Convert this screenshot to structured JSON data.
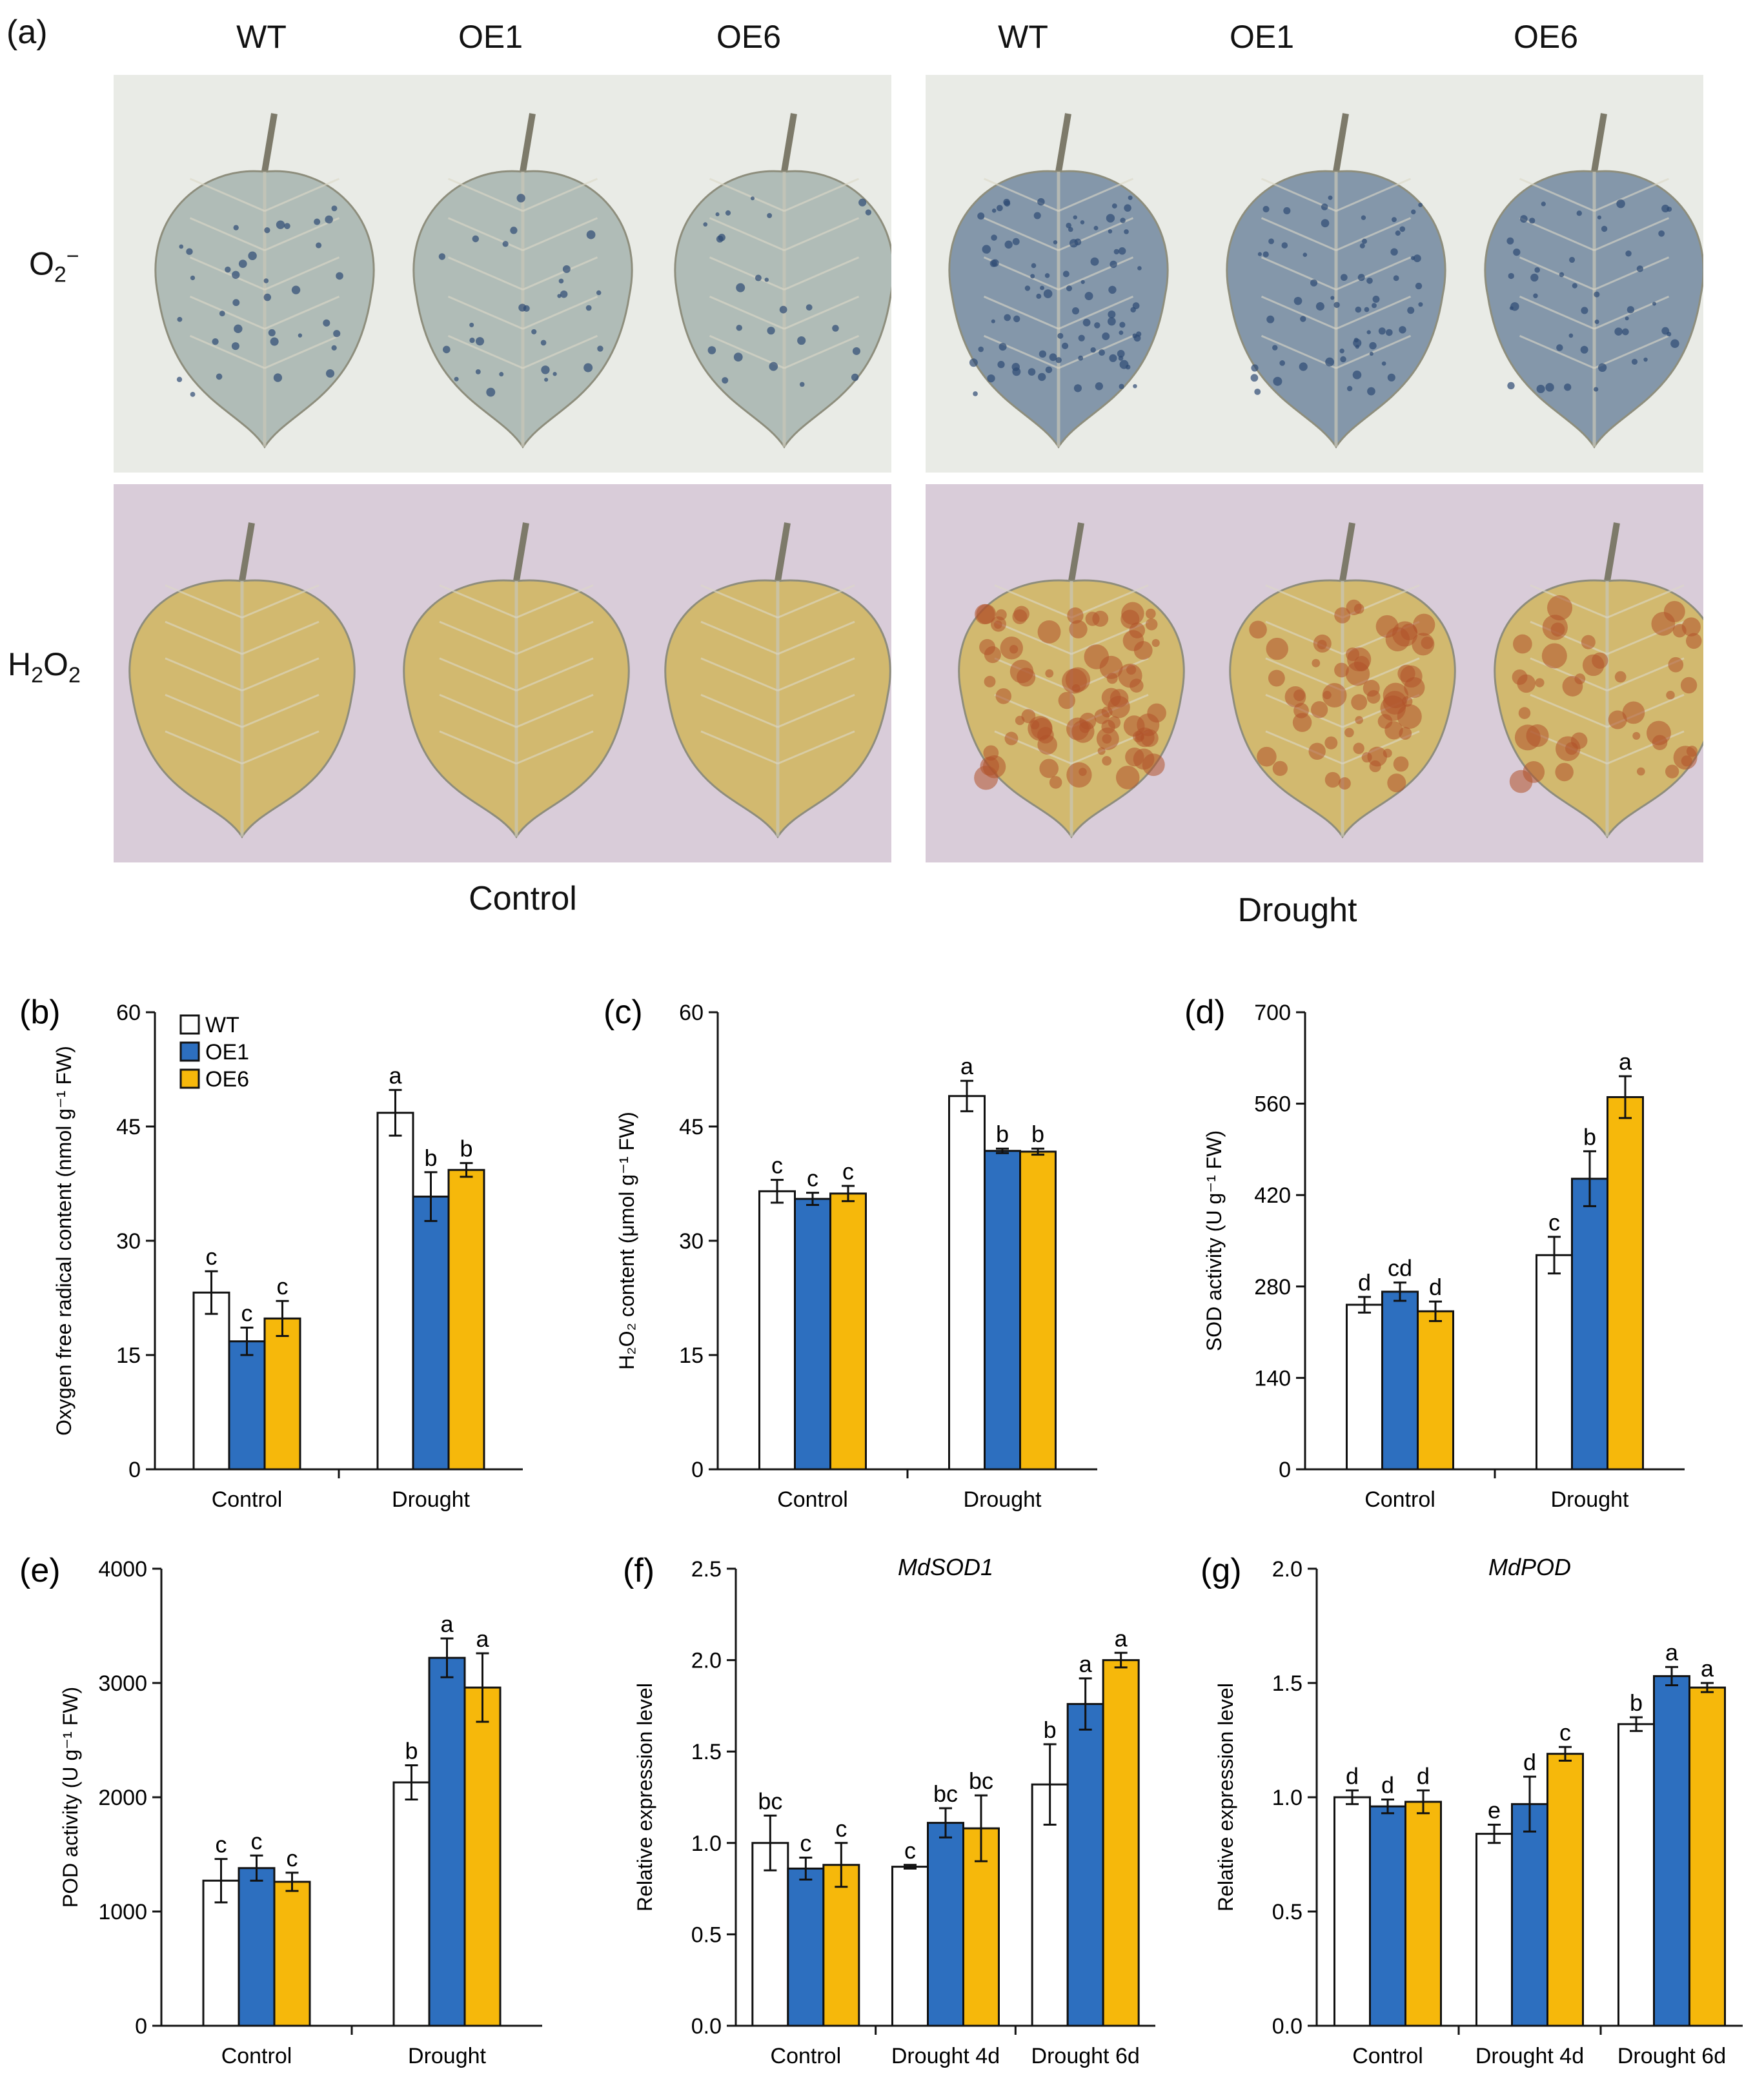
{
  "panel_a": {
    "letter": "(a)",
    "columns": [
      "WT",
      "OE1",
      "OE6",
      "WT",
      "OE1",
      "OE6"
    ],
    "rows": [
      {
        "label_main": "O",
        "label_sub": "2",
        "label_sup": "−",
        "stain": "NBT"
      },
      {
        "label_main": "H",
        "label_sub": "2",
        "label_main2": "O",
        "label_sub2": "2",
        "stain": "DAB"
      }
    ],
    "conditions": [
      "Control",
      "Drought"
    ],
    "colors": {
      "nbt_background": "#e9ebe6",
      "nbt_leaf_control": "#aebab5",
      "nbt_leaf_drought": "#7f93a7",
      "nbt_spot": "#2e4a73",
      "dab_background": "#d9ccd9",
      "dab_leaf": "#d2b86a",
      "dab_spot": "#b0522a",
      "stem": "#7d7a6a"
    }
  },
  "colors": {
    "WT": "#ffffff",
    "OE1": "#2d6fbf",
    "OE6": "#f6b80b",
    "axis": "#111111"
  },
  "chart_data": [
    {
      "id": "b",
      "letter": "(b)",
      "type": "bar",
      "ylabel": "Oxygen free radical content (nmol g⁻¹ FW)",
      "title": "",
      "categories": [
        "Control",
        "Drought"
      ],
      "ylim": [
        0,
        60
      ],
      "yticks": [
        0,
        15,
        30,
        45,
        60
      ],
      "legend": [
        "WT",
        "OE1",
        "OE6"
      ],
      "series": [
        {
          "name": "WT",
          "values": [
            23.2,
            46.8
          ],
          "errors": [
            2.8,
            3.0
          ],
          "letters": [
            "c",
            "a"
          ]
        },
        {
          "name": "OE1",
          "values": [
            16.8,
            35.8
          ],
          "errors": [
            1.8,
            3.2
          ],
          "letters": [
            "c",
            "b"
          ]
        },
        {
          "name": "OE6",
          "values": [
            19.8,
            39.3
          ],
          "errors": [
            2.3,
            0.9
          ],
          "letters": [
            "c",
            "b"
          ]
        }
      ]
    },
    {
      "id": "c",
      "letter": "(c)",
      "type": "bar",
      "ylabel": "H₂O₂ content (μmol g⁻¹ FW)",
      "title": "",
      "categories": [
        "Control",
        "Drought"
      ],
      "ylim": [
        0,
        60
      ],
      "yticks": [
        0,
        15,
        30,
        45,
        60
      ],
      "series": [
        {
          "name": "WT",
          "values": [
            36.5,
            49.0
          ],
          "errors": [
            1.5,
            2.0
          ],
          "letters": [
            "c",
            "a"
          ]
        },
        {
          "name": "OE1",
          "values": [
            35.5,
            41.8
          ],
          "errors": [
            0.8,
            0.3
          ],
          "letters": [
            "c",
            "b"
          ]
        },
        {
          "name": "OE6",
          "values": [
            36.2,
            41.7
          ],
          "errors": [
            1.0,
            0.4
          ],
          "letters": [
            "c",
            "b"
          ]
        }
      ]
    },
    {
      "id": "d",
      "letter": "(d)",
      "type": "bar",
      "ylabel": "SOD activity (U g⁻¹ FW)",
      "title": "",
      "categories": [
        "Control",
        "Drought"
      ],
      "ylim": [
        0,
        700
      ],
      "yticks": [
        0,
        140,
        280,
        420,
        560,
        700
      ],
      "series": [
        {
          "name": "WT",
          "values": [
            252,
            328
          ],
          "errors": [
            12,
            28
          ],
          "letters": [
            "d",
            "c"
          ]
        },
        {
          "name": "OE1",
          "values": [
            272,
            445
          ],
          "errors": [
            14,
            42
          ],
          "letters": [
            "cd",
            "b"
          ]
        },
        {
          "name": "OE6",
          "values": [
            242,
            570
          ],
          "errors": [
            15,
            32
          ],
          "letters": [
            "d",
            "a"
          ]
        }
      ]
    },
    {
      "id": "e",
      "letter": "(e)",
      "type": "bar",
      "ylabel": "POD activity (U g⁻¹ FW)",
      "title": "",
      "categories": [
        "Control",
        "Drought"
      ],
      "ylim": [
        0,
        4000
      ],
      "yticks": [
        0,
        1000,
        2000,
        3000,
        4000
      ],
      "series": [
        {
          "name": "WT",
          "values": [
            1270,
            2130
          ],
          "errors": [
            190,
            150
          ],
          "letters": [
            "c",
            "b"
          ]
        },
        {
          "name": "OE1",
          "values": [
            1380,
            3220
          ],
          "errors": [
            110,
            170
          ],
          "letters": [
            "c",
            "a"
          ]
        },
        {
          "name": "OE6",
          "values": [
            1260,
            2960
          ],
          "errors": [
            80,
            300
          ],
          "letters": [
            "c",
            "a"
          ]
        }
      ]
    },
    {
      "id": "f",
      "letter": "(f)",
      "type": "bar",
      "ylabel": "Relative expression level",
      "title": "MdSOD1",
      "categories": [
        "Control",
        "Drought 4d",
        "Drought 6d"
      ],
      "ylim": [
        0,
        2.5
      ],
      "yticks": [
        "0.0",
        "0.5",
        "1.0",
        "1.5",
        "2.0",
        "2.5"
      ],
      "series": [
        {
          "name": "WT",
          "values": [
            1.0,
            0.87,
            1.32
          ],
          "errors": [
            0.15,
            0.01,
            0.22
          ],
          "letters": [
            "bc",
            "c",
            "b"
          ]
        },
        {
          "name": "OE1",
          "values": [
            0.86,
            1.11,
            1.76
          ],
          "errors": [
            0.06,
            0.08,
            0.14
          ],
          "letters": [
            "c",
            "bc",
            "a"
          ]
        },
        {
          "name": "OE6",
          "values": [
            0.88,
            1.08,
            2.0
          ],
          "errors": [
            0.12,
            0.18,
            0.04
          ],
          "letters": [
            "c",
            "bc",
            "a"
          ]
        }
      ]
    },
    {
      "id": "g",
      "letter": "(g)",
      "type": "bar",
      "ylabel": "Relative expression level",
      "title": "MdPOD",
      "categories": [
        "Control",
        "Drought 4d",
        "Drought 6d"
      ],
      "ylim": [
        0,
        2.0
      ],
      "yticks": [
        "0.0",
        "0.5",
        "1.0",
        "1.5",
        "2.0"
      ],
      "series": [
        {
          "name": "WT",
          "values": [
            1.0,
            0.84,
            1.32
          ],
          "errors": [
            0.03,
            0.04,
            0.03
          ],
          "letters": [
            "d",
            "e",
            "b"
          ]
        },
        {
          "name": "OE1",
          "values": [
            0.96,
            0.97,
            1.53
          ],
          "errors": [
            0.03,
            0.12,
            0.04
          ],
          "letters": [
            "d",
            "d",
            "a"
          ]
        },
        {
          "name": "OE6",
          "values": [
            0.98,
            1.19,
            1.48
          ],
          "errors": [
            0.05,
            0.03,
            0.02
          ],
          "letters": [
            "d",
            "c",
            "a"
          ]
        }
      ]
    }
  ]
}
